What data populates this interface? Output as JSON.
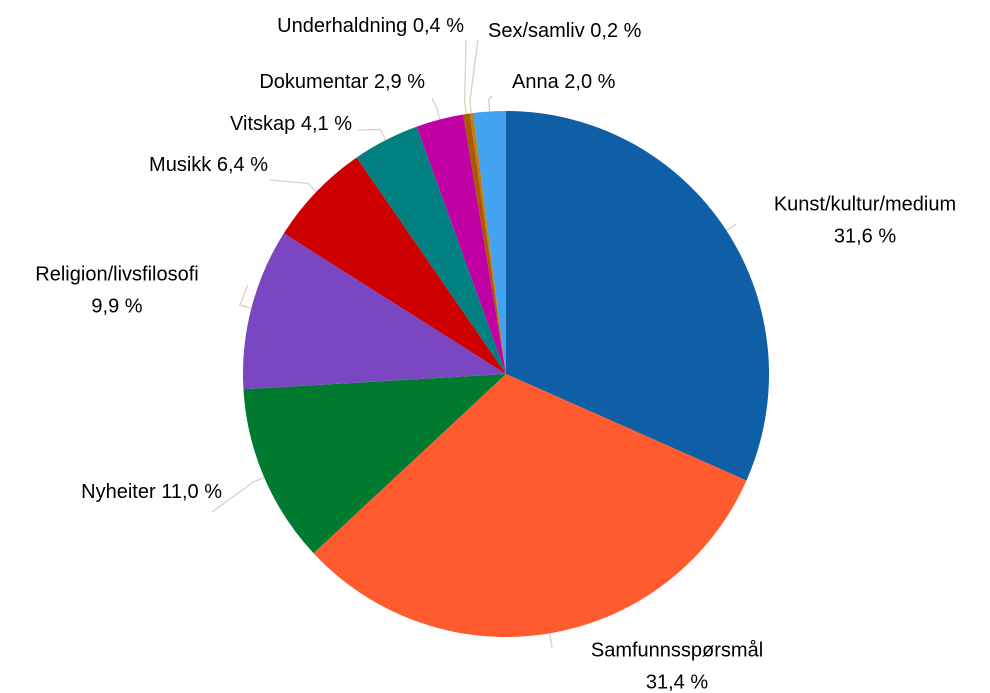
{
  "chart_data": {
    "type": "pie",
    "categories": [
      "Kunst/kultur/medium",
      "Samfunnsspørsmål",
      "Nyheiter",
      "Religion/livsfilosofi",
      "Musikk",
      "Vitskap",
      "Dokumentar",
      "Underhaldning",
      "Sex/samliv",
      "Anna"
    ],
    "values": [
      31.6,
      31.4,
      11.0,
      9.9,
      6.4,
      4.1,
      2.9,
      0.4,
      0.2,
      2.0
    ],
    "value_labels": [
      "31,6 %",
      "31,4 %",
      "11,0 %",
      "9,9 %",
      "6,4 %",
      "4,1 %",
      "2,9 %",
      "0,4 %",
      "0,2 %",
      "2,0 %"
    ],
    "colors": [
      "#0f5fa6",
      "#ff5b2e",
      "#007a2f",
      "#7b46c1",
      "#cc0000",
      "#008080",
      "#c100a3",
      "#a85a00",
      "#c87a10",
      "#43a2f2"
    ]
  }
}
